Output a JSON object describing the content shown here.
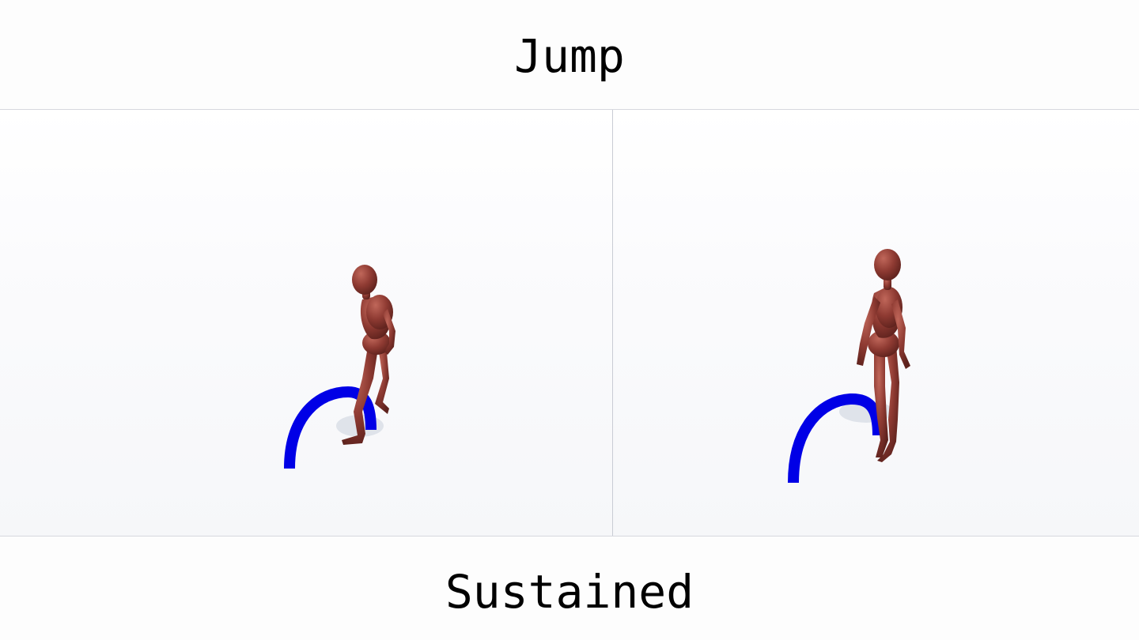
{
  "header": {
    "title": "Jump"
  },
  "footer": {
    "caption": "Sustained"
  },
  "scene": {
    "figure_color": "#8e3a32",
    "figure_highlight": "#b5584c",
    "trajectory_color": "#0000e6",
    "shadow_color": "#dfe3ea",
    "panels": [
      {
        "name": "left-view",
        "figure": "figure",
        "trajectory": "arc-trajectory"
      },
      {
        "name": "right-view",
        "figure": "figure",
        "trajectory": "arc-trajectory"
      }
    ]
  }
}
